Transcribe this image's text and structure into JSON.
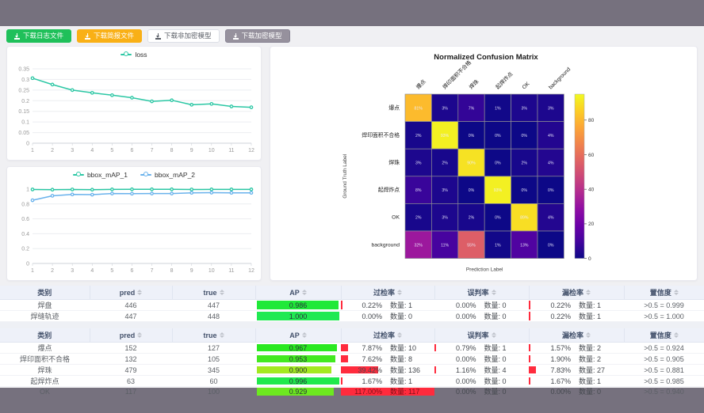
{
  "window": {
    "chrome_bg": "#76717e",
    "content_bg": "#f0f0f3"
  },
  "toolbar": {
    "buttons": [
      {
        "label": "下载日志文件",
        "bg": "#1fc05a",
        "fg": "#ffffff",
        "border": "#1fc05a"
      },
      {
        "label": "下载简报文件",
        "bg": "#f9b016",
        "fg": "#ffffff",
        "border": "#f9b016"
      },
      {
        "label": "下载非加密模型",
        "bg": "#ffffff",
        "fg": "#5a5e66",
        "border": "#dcdfe6"
      },
      {
        "label": "下载加密模型",
        "bg": "#96919d",
        "fg": "#ffffff",
        "border": "#868292"
      }
    ]
  },
  "chart_data": [
    {
      "type": "line",
      "title": "",
      "x": [
        1,
        2,
        3,
        4,
        5,
        6,
        7,
        8,
        9,
        10,
        11,
        12
      ],
      "series": [
        {
          "name": "loss",
          "color": "#2bc7a4",
          "values": [
            0.306,
            0.276,
            0.25,
            0.237,
            0.226,
            0.214,
            0.197,
            0.202,
            0.181,
            0.185,
            0.173,
            0.169
          ]
        }
      ],
      "ylim": [
        0,
        0.35
      ],
      "yticks": [
        0,
        0.05,
        0.1,
        0.15,
        0.2,
        0.25,
        0.3,
        0.35
      ],
      "grid": true,
      "legend_position": "top"
    },
    {
      "type": "line",
      "title": "",
      "x": [
        1,
        2,
        3,
        4,
        5,
        6,
        7,
        8,
        9,
        10,
        11,
        12
      ],
      "series": [
        {
          "name": "bbox_mAP_1",
          "color": "#2bc7a4",
          "values": [
            0.995,
            0.992,
            0.995,
            0.992,
            0.996,
            0.997,
            0.997,
            0.997,
            0.995,
            0.996,
            0.996,
            0.996
          ]
        },
        {
          "name": "bbox_mAP_2",
          "color": "#69b2ec",
          "values": [
            0.85,
            0.91,
            0.928,
            0.925,
            0.94,
            0.938,
            0.94,
            0.94,
            0.95,
            0.952,
            0.95,
            0.95
          ]
        }
      ],
      "ylim": [
        0,
        1
      ],
      "yticks": [
        0,
        0.2,
        0.4,
        0.6,
        0.8,
        1
      ],
      "grid": true,
      "legend_position": "top"
    },
    {
      "type": "heatmap",
      "title": "Normalized Confusion Matrix",
      "xlabel": "Prediction Label",
      "ylabel": "Ground Truth Label",
      "labels": [
        "爆点",
        "焊印面积不合格",
        "焊珠",
        "起焊炸点",
        "OK",
        "background"
      ],
      "values_pct": [
        [
          81,
          3,
          7,
          1,
          3,
          3
        ],
        [
          2,
          93,
          0,
          0,
          0,
          4
        ],
        [
          3,
          2,
          90,
          0,
          2,
          4
        ],
        [
          8,
          3,
          0,
          93,
          0,
          0
        ],
        [
          2,
          3,
          2,
          0,
          89,
          4
        ],
        [
          32,
          11,
          55,
          1,
          13,
          0
        ]
      ],
      "vmax": 95,
      "colorbar_ticks": [
        0,
        20,
        40,
        60,
        80
      ],
      "colormap": "plasma"
    }
  ],
  "tables": [
    {
      "headers": [
        "类别",
        "pred",
        "true",
        "AP",
        "过检率",
        "误判率",
        "漏检率",
        "置信度"
      ],
      "sortable": [
        false,
        true,
        true,
        true,
        true,
        true,
        true,
        true
      ],
      "rows": [
        {
          "name": "焊盘",
          "pred": "446",
          "true": "447",
          "ap": 0.986,
          "ap_label": "0.986",
          "over_pct": "0.22%",
          "over_count": "数量: 1",
          "over_val": 0.22,
          "mis_pct": "0.00%",
          "mis_count": "数量: 0",
          "mis_val": 0,
          "miss_pct": "0.22%",
          "miss_count": "数量: 1",
          "miss_val": 0.22,
          "conf": ">0.5 = 0.999"
        },
        {
          "name": "焊缝轨迹",
          "pred": "447",
          "true": "448",
          "ap": 1.0,
          "ap_label": "1.000",
          "over_pct": "0.00%",
          "over_count": "数量: 0",
          "over_val": 0,
          "mis_pct": "0.00%",
          "mis_count": "数量: 0",
          "mis_val": 0,
          "miss_pct": "0.22%",
          "miss_count": "数量: 1",
          "miss_val": 0.22,
          "conf": ">0.5 = 1.000"
        }
      ]
    },
    {
      "headers": [
        "类别",
        "pred",
        "true",
        "AP",
        "过检率",
        "误判率",
        "漏检率",
        "置信度"
      ],
      "sortable": [
        false,
        true,
        true,
        true,
        true,
        true,
        true,
        true
      ],
      "rows": [
        {
          "name": "爆点",
          "pred": "152",
          "true": "127",
          "ap": 0.967,
          "ap_label": "0.967",
          "over_pct": "7.87%",
          "over_count": "数量: 10",
          "over_val": 7.87,
          "mis_pct": "0.79%",
          "mis_count": "数量: 1",
          "mis_val": 0.79,
          "miss_pct": "1.57%",
          "miss_count": "数量: 2",
          "miss_val": 1.57,
          "conf": ">0.5 = 0.924"
        },
        {
          "name": "焊印面积不合格",
          "pred": "132",
          "true": "105",
          "ap": 0.953,
          "ap_label": "0.953",
          "over_pct": "7.62%",
          "over_count": "数量: 8",
          "over_val": 7.62,
          "mis_pct": "0.00%",
          "mis_count": "数量: 0",
          "mis_val": 0,
          "miss_pct": "1.90%",
          "miss_count": "数量: 2",
          "miss_val": 1.9,
          "conf": ">0.5 = 0.905"
        },
        {
          "name": "焊珠",
          "pred": "479",
          "true": "345",
          "ap": 0.9,
          "ap_label": "0.900",
          "over_pct": "39.42%",
          "over_count": "数量: 136",
          "over_val": 39.42,
          "mis_pct": "1.16%",
          "mis_count": "数量: 4",
          "mis_val": 1.16,
          "miss_pct": "7.83%",
          "miss_count": "数量: 27",
          "miss_val": 7.83,
          "conf": ">0.5 = 0.881"
        },
        {
          "name": "起焊炸点",
          "pred": "63",
          "true": "60",
          "ap": 0.996,
          "ap_label": "0.996",
          "over_pct": "1.67%",
          "over_count": "数量: 1",
          "over_val": 1.67,
          "mis_pct": "0.00%",
          "mis_count": "数量: 0",
          "mis_val": 0,
          "miss_pct": "1.67%",
          "miss_count": "数量: 1",
          "miss_val": 1.67,
          "conf": ">0.5 = 0.985"
        },
        {
          "name": "OK",
          "pred": "117",
          "true": "100",
          "ap": 0.929,
          "ap_label": "0.929",
          "over_pct": "117.00%",
          "over_count": "数量: 117",
          "over_val": 117,
          "mis_pct": "0.00%",
          "mis_count": "数量: 0",
          "mis_val": 0,
          "miss_pct": "0.00%",
          "miss_count": "数量: 0",
          "miss_val": 0,
          "conf": ">0.5 = 0.940"
        }
      ]
    }
  ],
  "colors": {
    "rate_bar": "#ff2b3d",
    "teal_series": "#2bc7a4",
    "blue_series": "#69b2ec",
    "grid_line": "#ebedf0",
    "table_header_bg": "#eef1f9"
  }
}
